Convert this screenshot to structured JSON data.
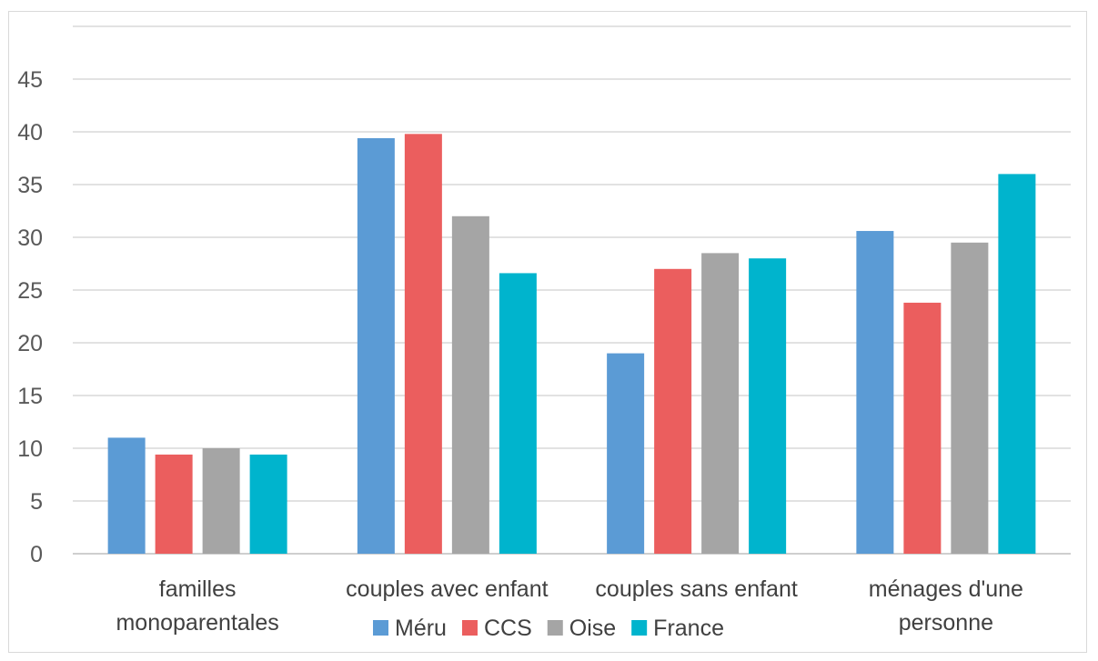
{
  "chart_data": {
    "type": "bar",
    "categories": [
      [
        "familles",
        "monoparentales"
      ],
      [
        "couples avec enfant"
      ],
      [
        "couples sans enfant"
      ],
      [
        "ménages d'une",
        "personne"
      ]
    ],
    "series": [
      {
        "name": "Méru",
        "color": "#5b9bd5",
        "values": [
          11.0,
          39.4,
          19.0,
          30.6
        ]
      },
      {
        "name": "CCS",
        "color": "#eb5e5e",
        "values": [
          9.4,
          39.8,
          27.0,
          23.8
        ]
      },
      {
        "name": "Oise",
        "color": "#a5a5a5",
        "values": [
          10.0,
          32.0,
          28.5,
          29.5
        ]
      },
      {
        "name": "France",
        "color": "#00b4cd",
        "values": [
          9.4,
          26.6,
          28.0,
          36.0
        ]
      }
    ],
    "ylim": [
      0,
      50
    ],
    "yticks": [
      0,
      5,
      10,
      15,
      20,
      25,
      30,
      35,
      40,
      45
    ],
    "grid": true,
    "legend": "bottom"
  }
}
